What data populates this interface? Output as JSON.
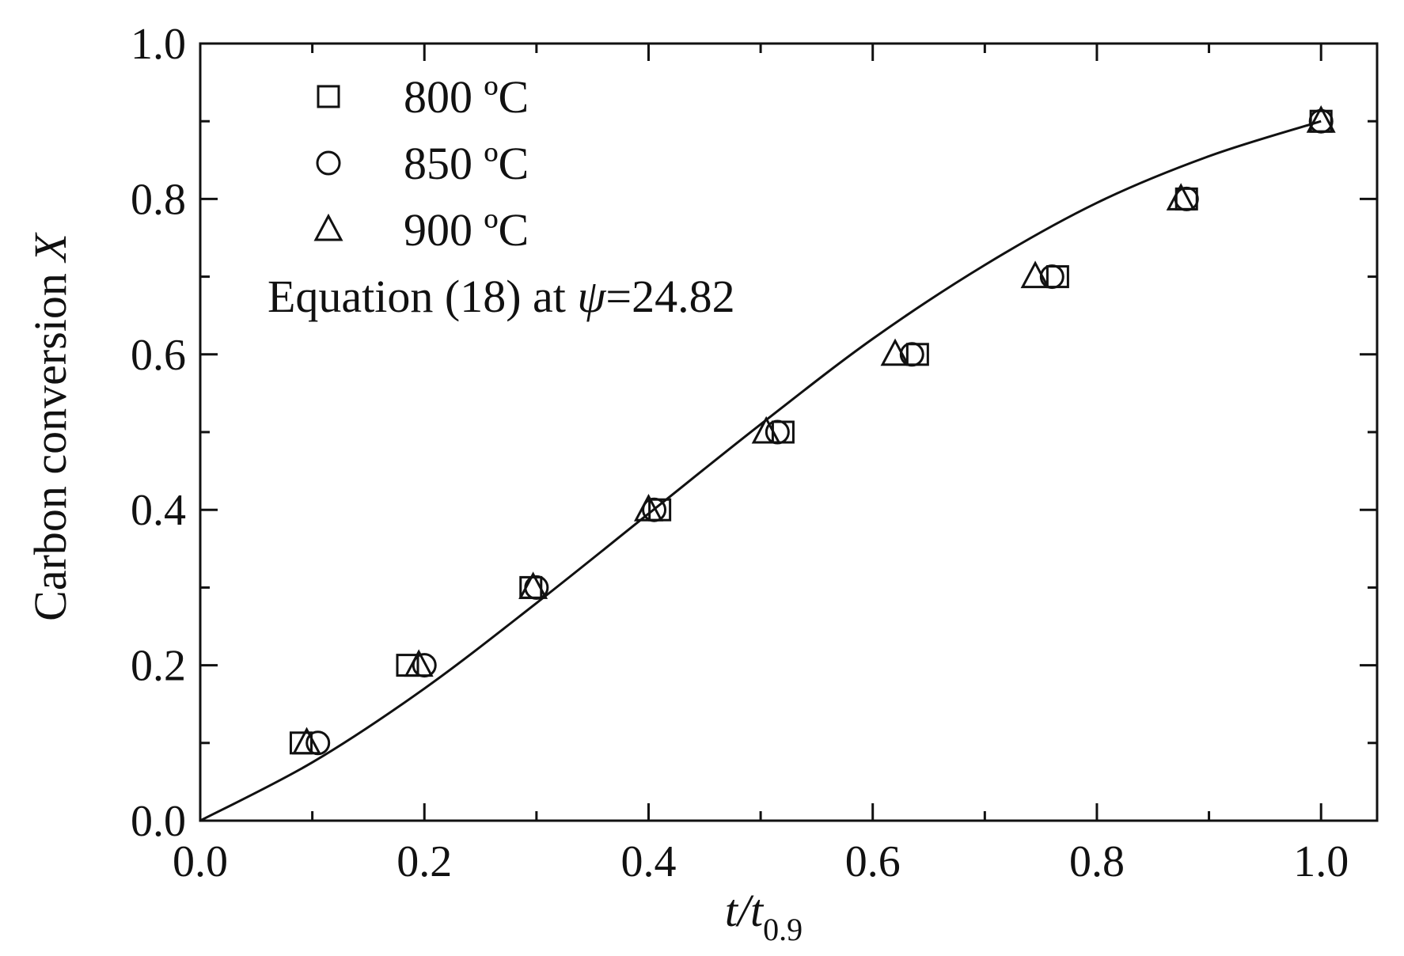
{
  "chart_data": {
    "type": "scatter",
    "xlabel": {
      "main": "t/t",
      "subscript": "0.9"
    },
    "ylabel": {
      "main": "Carbon conversion ",
      "italic": "X"
    },
    "xlim": [
      0.0,
      1.05
    ],
    "ylim": [
      0.0,
      1.0
    ],
    "xticks": [
      "0.0",
      "0.2",
      "0.4",
      "0.6",
      "0.8",
      "1.0"
    ],
    "yticks": [
      "0.0",
      "0.2",
      "0.4",
      "0.6",
      "0.8",
      "1.0"
    ],
    "grid": false,
    "legend_position": "top-left",
    "series": [
      {
        "name": "800 ºC",
        "marker": "square",
        "x": [
          0.09,
          0.185,
          0.295,
          0.41,
          0.52,
          0.64,
          0.765,
          0.88,
          1.0
        ],
        "y": [
          0.1,
          0.2,
          0.3,
          0.4,
          0.5,
          0.6,
          0.7,
          0.8,
          0.9
        ]
      },
      {
        "name": "850 ºC",
        "marker": "circle",
        "x": [
          0.105,
          0.2,
          0.3,
          0.405,
          0.515,
          0.635,
          0.76,
          0.88,
          1.0
        ],
        "y": [
          0.1,
          0.2,
          0.3,
          0.4,
          0.5,
          0.6,
          0.7,
          0.8,
          0.9
        ]
      },
      {
        "name": "900 ºC",
        "marker": "triangle",
        "x": [
          0.095,
          0.195,
          0.297,
          0.4,
          0.505,
          0.62,
          0.745,
          0.875,
          1.0
        ],
        "y": [
          0.1,
          0.2,
          0.3,
          0.4,
          0.5,
          0.6,
          0.7,
          0.8,
          0.9
        ]
      },
      {
        "name": "Equation (18) at ψ=24.82",
        "label_parts": [
          "Equation (18) at ",
          "ψ",
          "=24.82"
        ],
        "marker": "line",
        "x": [
          0.0,
          0.1,
          0.2,
          0.3,
          0.4,
          0.5,
          0.6,
          0.7,
          0.8,
          0.9,
          1.0
        ],
        "y": [
          0.0,
          0.075,
          0.17,
          0.28,
          0.395,
          0.51,
          0.62,
          0.715,
          0.795,
          0.855,
          0.9
        ]
      }
    ]
  }
}
